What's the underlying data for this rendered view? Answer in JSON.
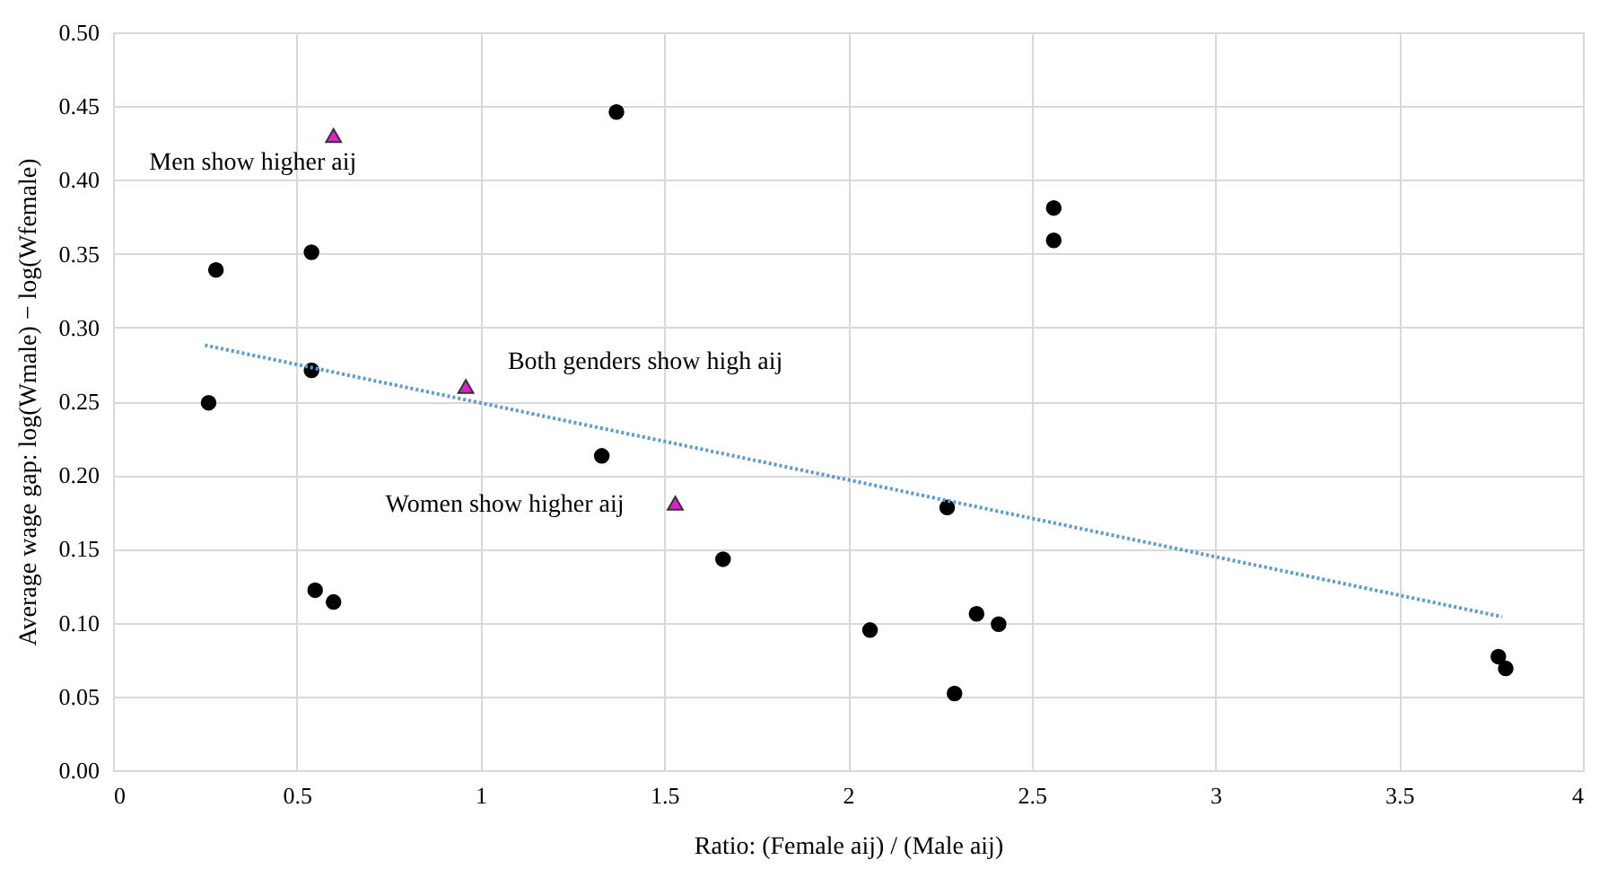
{
  "chart_data": {
    "type": "scatter",
    "xlabel": "Ratio: (Female aij) / (Male aij)",
    "ylabel": "Average wage gap: log(Wmale) − log(Wfemale)",
    "xlim": [
      0,
      4
    ],
    "xticks": [
      0,
      0.5,
      1,
      1.5,
      2,
      2.5,
      3,
      3.5,
      4
    ],
    "ylim": [
      0,
      0.5
    ],
    "yticks": [
      {
        "value": 0,
        "label": "0.00"
      },
      {
        "value": 0.05,
        "label": "0.05"
      },
      {
        "value": 0.1,
        "label": "0.10"
      },
      {
        "value": 0.15,
        "label": "0.15"
      },
      {
        "value": 0.2,
        "label": "0.20"
      },
      {
        "value": 0.25,
        "label": "0.25"
      },
      {
        "value": 0.3,
        "label": "0.30"
      },
      {
        "value": 0.35,
        "label": "0.35"
      },
      {
        "value": 0.4,
        "label": "0.40"
      },
      {
        "value": 0.45,
        "label": "0.45"
      },
      {
        "value": 0.5,
        "label": "0.50"
      }
    ],
    "grid": true,
    "series": [
      {
        "marker": "circle",
        "color": "#000000",
        "x": [
          0.26,
          0.28,
          0.54,
          0.54,
          0.55,
          0.6,
          1.33,
          1.37,
          1.66,
          2.06,
          2.27,
          2.29,
          2.35,
          2.41,
          2.56,
          2.56,
          3.77,
          3.79
        ],
        "values": [
          0.249,
          0.339,
          0.351,
          0.271,
          0.122,
          0.114,
          0.213,
          0.446,
          0.143,
          0.095,
          0.178,
          0.052,
          0.106,
          0.099,
          0.381,
          0.359,
          0.077,
          0.069
        ]
      },
      {
        "marker": "triangle",
        "color": "#e020d0",
        "x": [
          0.6,
          0.96,
          1.53
        ],
        "values": [
          0.43,
          0.26,
          0.181
        ]
      },
      {
        "type": "line",
        "line_style": "dotted",
        "color": "#5b9bd5",
        "x": [
          0.25,
          3.78
        ],
        "values": [
          0.288,
          0.104
        ]
      }
    ],
    "annotations": [
      {
        "text": "Men show higher aij",
        "x": 0.6,
        "y": 0.43
      },
      {
        "text": "Both genders show high aij",
        "x": 0.96,
        "y": 0.26
      },
      {
        "text": "Women show higher aij",
        "x": 1.53,
        "y": 0.181
      }
    ]
  }
}
